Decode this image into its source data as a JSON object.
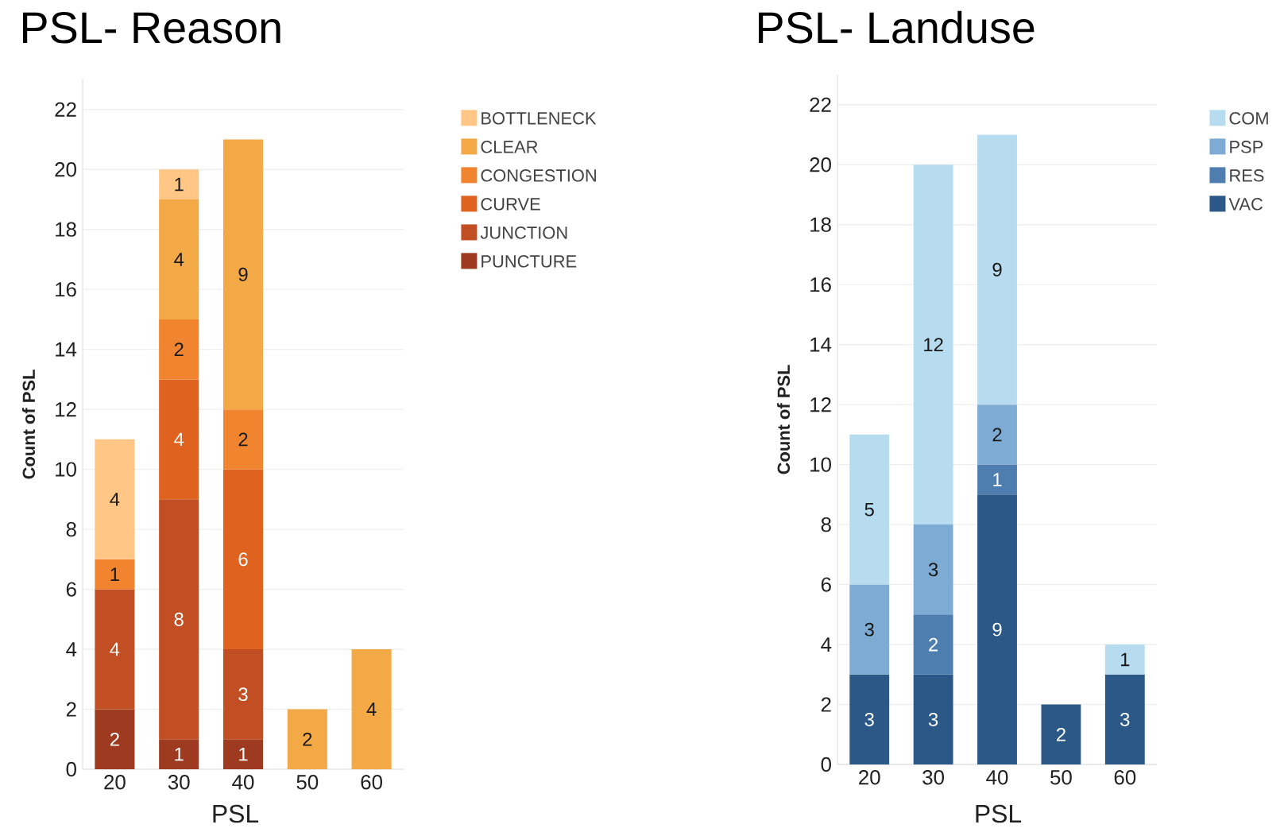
{
  "chart_data": [
    {
      "type": "bar",
      "stacked": true,
      "title": "PSL- Reason",
      "xlabel": "PSL",
      "ylabel": "Count of PSL",
      "categories": [
        "20",
        "30",
        "40",
        "50",
        "60"
      ],
      "ylim": [
        0,
        23
      ],
      "yticks": [
        0,
        2,
        4,
        6,
        8,
        10,
        12,
        14,
        16,
        18,
        20,
        22
      ],
      "grid": "y",
      "legend": "right",
      "data_labels": true,
      "series": [
        {
          "name": "PUNCTURE",
          "color": "#9e3a20",
          "values": [
            2,
            1,
            1,
            null,
            null
          ]
        },
        {
          "name": "JUNCTION",
          "color": "#c14f23",
          "values": [
            4,
            8,
            3,
            null,
            null
          ]
        },
        {
          "name": "CURVE",
          "color": "#e0621f",
          "values": [
            null,
            4,
            6,
            null,
            null
          ]
        },
        {
          "name": "CONGESTION",
          "color": "#f0842f",
          "values": [
            1,
            2,
            2,
            null,
            null
          ]
        },
        {
          "name": "CLEAR",
          "color": "#f4a947",
          "values": [
            null,
            4,
            9,
            2,
            4
          ]
        },
        {
          "name": "BOTTLENECK",
          "color": "#ffc685",
          "values": [
            4,
            1,
            null,
            null,
            null
          ]
        }
      ]
    },
    {
      "type": "bar",
      "stacked": true,
      "title": "PSL- Landuse",
      "xlabel": "PSL",
      "ylabel": "Count of PSL",
      "categories": [
        "20",
        "30",
        "40",
        "50",
        "60"
      ],
      "ylim": [
        0,
        23
      ],
      "yticks": [
        0,
        2,
        4,
        6,
        8,
        10,
        12,
        14,
        16,
        18,
        20,
        22
      ],
      "grid": "y",
      "legend": "right",
      "data_labels": true,
      "series": [
        {
          "name": "VAC",
          "color": "#2b5886",
          "values": [
            3,
            3,
            9,
            2,
            3
          ]
        },
        {
          "name": "RES",
          "color": "#4e7daf",
          "values": [
            null,
            2,
            1,
            null,
            null
          ]
        },
        {
          "name": "PSP",
          "color": "#7eabd3",
          "values": [
            3,
            3,
            2,
            null,
            null
          ]
        },
        {
          "name": "COM",
          "color": "#b8dcef",
          "values": [
            5,
            12,
            9,
            null,
            1
          ]
        }
      ]
    }
  ]
}
